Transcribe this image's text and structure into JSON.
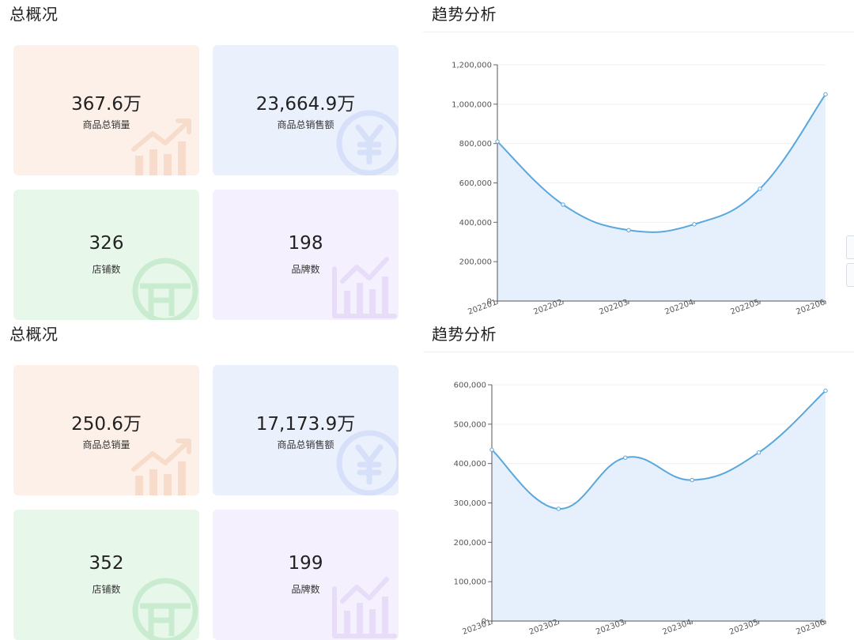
{
  "panels": [
    {
      "overview_title": "总概况",
      "trend_title": "趋势分析",
      "cards": [
        {
          "value": "367.6万",
          "label": "商品总销量",
          "icon": "trend-chart-icon"
        },
        {
          "value": "23,664.9万",
          "label": "商品总销售额",
          "icon": "yen-coin-icon"
        },
        {
          "value": "326",
          "label": "店铺数",
          "icon": "shop-icon"
        },
        {
          "value": "198",
          "label": "品牌数",
          "icon": "bar-chart-icon"
        }
      ],
      "chart_data": {
        "type": "area",
        "title": "",
        "xlabel": "",
        "ylabel": "",
        "x": [
          "202201",
          "202202",
          "202203",
          "202204",
          "202205",
          "202206"
        ],
        "values": [
          810000,
          490000,
          360000,
          390000,
          570000,
          1050000
        ],
        "ylim": [
          0,
          1200000
        ],
        "yticks": [
          "0",
          "200,000",
          "400,000",
          "600,000",
          "800,000",
          "1,000,000",
          "1,200,000"
        ],
        "line_color": "#5aa7de",
        "fill_color": "#e6f0fc",
        "grid": true
      }
    },
    {
      "overview_title": "总概况",
      "trend_title": "趋势分析",
      "cards": [
        {
          "value": "250.6万",
          "label": "商品总销量",
          "icon": "trend-chart-icon"
        },
        {
          "value": "17,173.9万",
          "label": "商品总销售额",
          "icon": "yen-coin-icon"
        },
        {
          "value": "352",
          "label": "店铺数",
          "icon": "shop-icon"
        },
        {
          "value": "199",
          "label": "品牌数",
          "icon": "bar-chart-icon"
        }
      ],
      "chart_data": {
        "type": "area",
        "title": "",
        "xlabel": "",
        "ylabel": "",
        "x": [
          "202301",
          "202302",
          "202303",
          "202304",
          "202305",
          "202306"
        ],
        "values": [
          435000,
          285000,
          415000,
          358000,
          428000,
          585000
        ],
        "ylim": [
          0,
          600000
        ],
        "yticks": [
          "0",
          "100,000",
          "200,000",
          "300,000",
          "400,000",
          "500,000",
          "600,000"
        ],
        "line_color": "#5aa7de",
        "fill_color": "#e6f0fc",
        "grid": true
      }
    }
  ],
  "colors": {
    "card_orange": "#fdf0e8",
    "card_blue": "#ebf0fd",
    "card_green": "#e7f8ea",
    "card_purple": "#f5f0fd"
  }
}
